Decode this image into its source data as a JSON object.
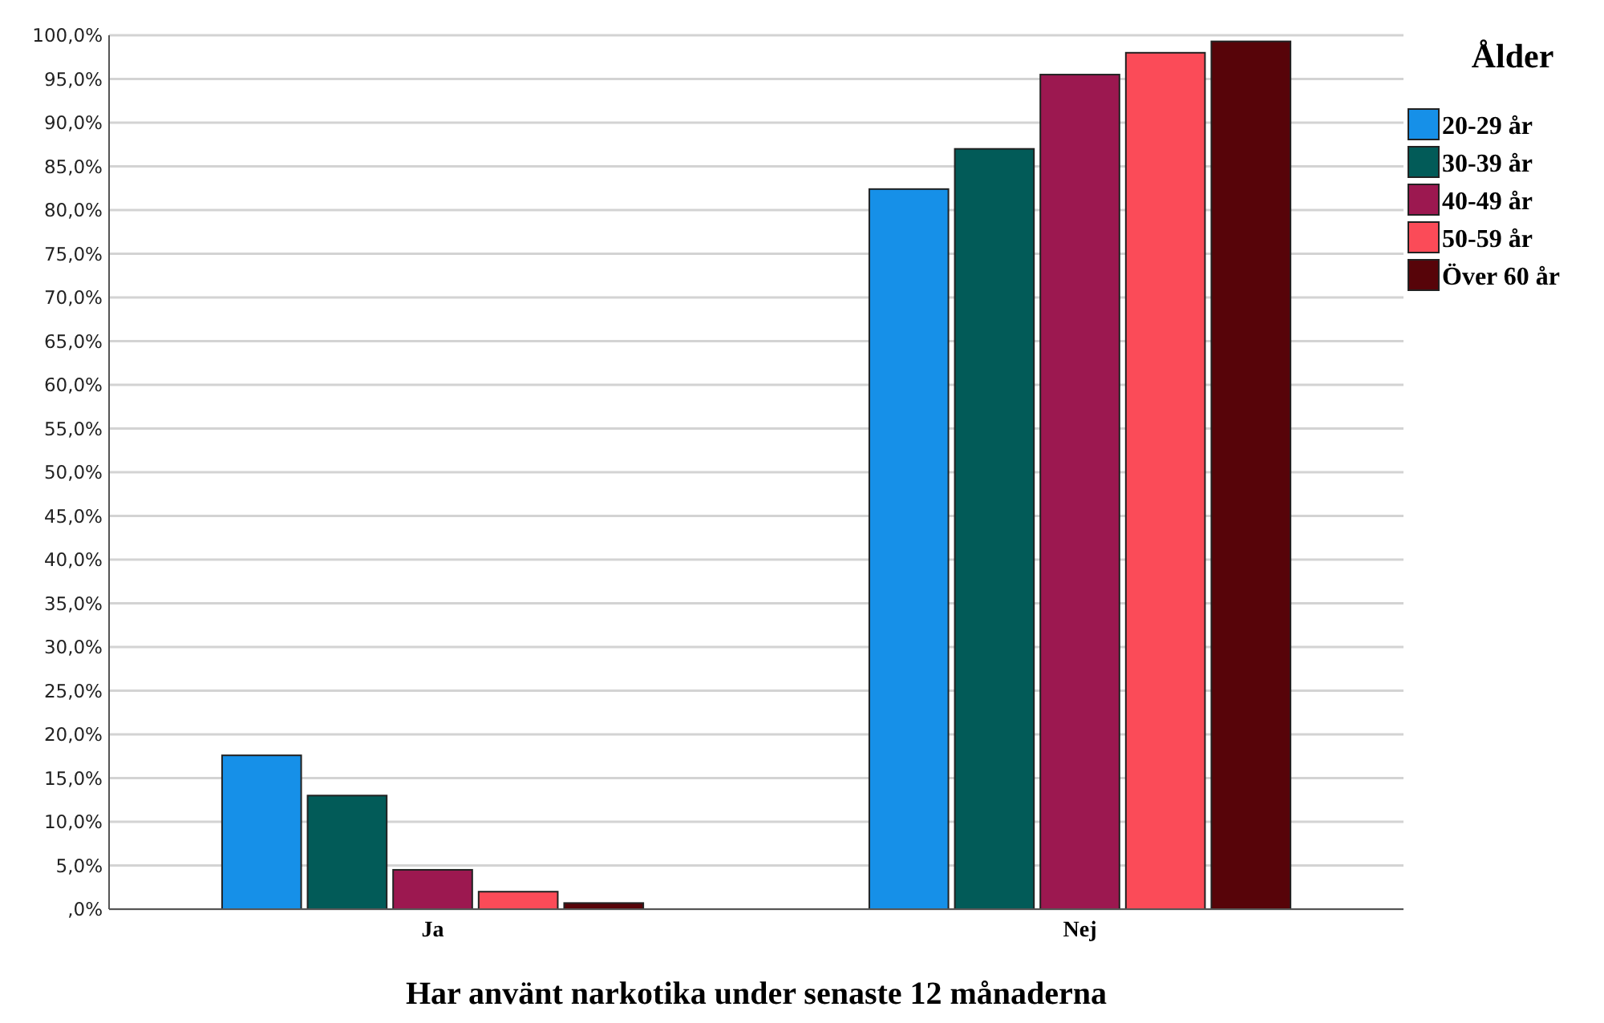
{
  "chart_data": {
    "type": "bar",
    "xlabel": "Har använt narkotika under senaste 12 månaderna",
    "legend_title": "Ålder",
    "categories": [
      "Ja",
      "Nej"
    ],
    "series": [
      {
        "name": "20-29 år",
        "color": "#1690e8",
        "values": [
          17.6,
          82.4
        ]
      },
      {
        "name": "30-39 år",
        "color": "#025b58",
        "values": [
          13.0,
          87.0
        ]
      },
      {
        "name": "40-49 år",
        "color": "#9c1850",
        "values": [
          4.5,
          95.5
        ]
      },
      {
        "name": "50-59 år",
        "color": "#fb4b58",
        "values": [
          2.0,
          98.0
        ]
      },
      {
        "name": "Över 60 år",
        "color": "#570409",
        "values": [
          0.7,
          99.3
        ]
      }
    ],
    "ylim": [
      0,
      100
    ],
    "yticks": [
      {
        "value": 0,
        "label": ",0%"
      },
      {
        "value": 5,
        "label": "5,0%"
      },
      {
        "value": 10,
        "label": "10,0%"
      },
      {
        "value": 15,
        "label": "15,0%"
      },
      {
        "value": 20,
        "label": "20,0%"
      },
      {
        "value": 25,
        "label": "25,0%"
      },
      {
        "value": 30,
        "label": "30,0%"
      },
      {
        "value": 35,
        "label": "35,0%"
      },
      {
        "value": 40,
        "label": "40,0%"
      },
      {
        "value": 45,
        "label": "45,0%"
      },
      {
        "value": 50,
        "label": "50,0%"
      },
      {
        "value": 55,
        "label": "55,0%"
      },
      {
        "value": 60,
        "label": "60,0%"
      },
      {
        "value": 65,
        "label": "65,0%"
      },
      {
        "value": 70,
        "label": "70,0%"
      },
      {
        "value": 75,
        "label": "75,0%"
      },
      {
        "value": 80,
        "label": "80,0%"
      },
      {
        "value": 85,
        "label": "85,0%"
      },
      {
        "value": 90,
        "label": "90,0%"
      },
      {
        "value": 95,
        "label": "95,0%"
      },
      {
        "value": 100,
        "label": "100,0%"
      }
    ],
    "grid": "y",
    "legend": "right"
  }
}
